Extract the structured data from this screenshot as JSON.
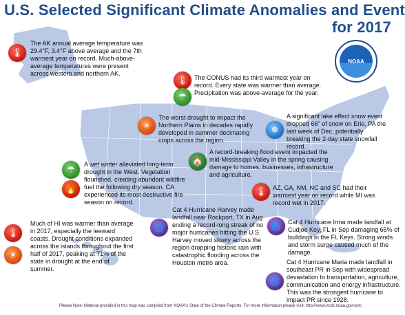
{
  "title": {
    "line1": "U.S. Selected Significant Climate Anomalies and Events",
    "line2": "for 2017"
  },
  "logo": {
    "text": "NOAA"
  },
  "callouts": {
    "alaska": "The AK annual average temperature was 29.4°F, 3.4°F above average and the 7th warmest year on record. Much-above-average temperatures were present across western and northern AK.",
    "conus": "The CONUS had its third warmest year on record. Every state was warmer than average. Precipitation was above-average for the year.",
    "drought": "The worst drought to impact the Northern Plains in decades rapidly developed in summer decimating crops across the region.",
    "snow": "A significant lake effect snow event dropped 66\" of snow on Erie, PA the last week of Dec, potentially breaking the 2-day state snowfall record.",
    "flood": "A record-breaking flood event impacted the mid-Mississippi Valley in the spring causing damage to homes, businesses, infrastructure and agriculture.",
    "west": "A wet winter alleviated long-term drought in the West. Vegetation flourished, creating abundant wildfire fuel the following dry season. CA experienced its most destructive fire season on record.",
    "states": "AZ, GA, NM, NC and SC had their warmest year on record while MI was record wet in 2017.",
    "harvey": "Cat 4 Hurricane Harvey made landfall near Rockport, TX in Aug ending a record-long streak of no major hurricanes hitting the U.S. Harvey moved slowly across the region dropping historic rain with catastrophic flooding across the Houston metro area.",
    "irma": "Cat 4 Hurricane Irma made landfall at Cudjoe Key, FL in Sep damaging 65% of buildings in the FL Keys. Strong winds and storm surge caused much of the damage.",
    "hawaii": "Much of HI was warmer than average in 2017, especially the leeward coasts. Drought conditions expanded across the islands throughout the first half of 2017, peaking at 71% of the state in drought at the end of summer.",
    "maria": "Cat 4 Hurricane Maria made landfall in southeast PR in Sep with widespread devastation to transportation, agriculture, communication and energy infrastructure. This was the strongest hurricane to impact PR since 1928."
  },
  "footer": "Please Note: Material provided in this map was compiled from NOAA's State of the Climate Reports. For more information please visit: http://www.ncdc.noaa.gov/sotc",
  "colors": {
    "title": "#1f4e8c",
    "map_fill": "#b9c9e6",
    "map_stroke": "#ffffff"
  },
  "icons": [
    "thermometer-icon",
    "rain-icon",
    "drought-icon",
    "snow-icon",
    "flood-icon",
    "wildfire-icon",
    "hurricane-icon"
  ]
}
